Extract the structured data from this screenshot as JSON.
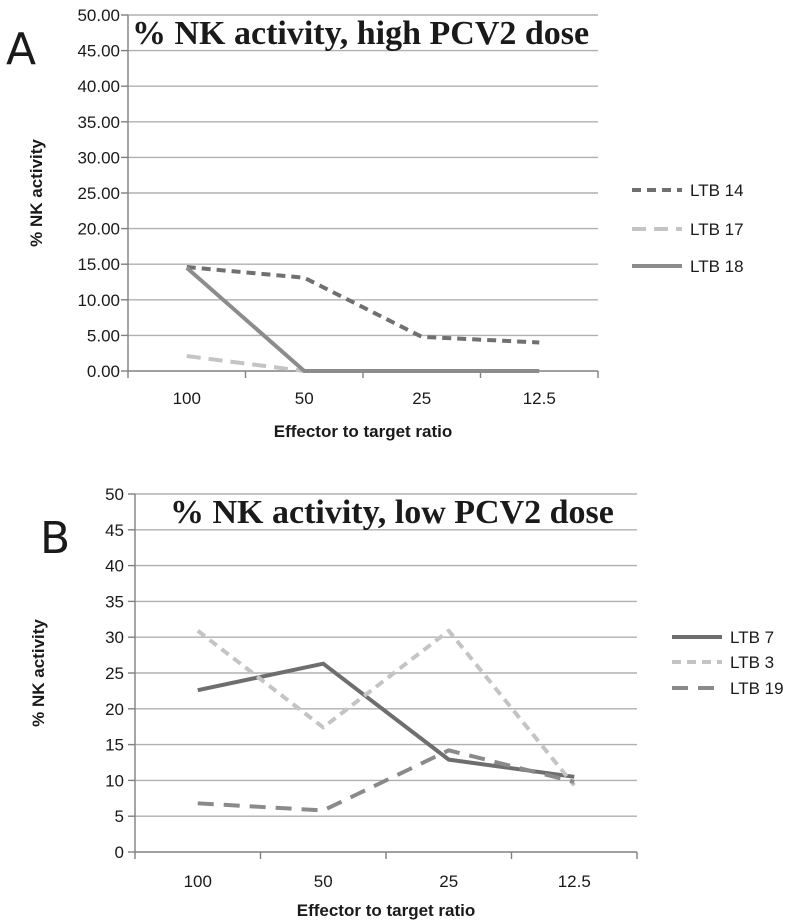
{
  "colors": {
    "background": "#ffffff",
    "grid": "#b0b0b0",
    "axis": "#808080",
    "text": "#1a1a1a"
  },
  "chart_data": [
    {
      "panel_letter": "A",
      "type": "line",
      "title": "% NK activity, high PCV2 dose",
      "xlabel": "Effector to target ratio",
      "ylabel": "% NK activity",
      "categories": [
        "100",
        "50",
        "25",
        "12.5"
      ],
      "ylim": [
        0,
        50
      ],
      "yticks": [
        0,
        5,
        10,
        15,
        20,
        25,
        30,
        35,
        40,
        45,
        50
      ],
      "ytick_labels": [
        "0.00",
        "5.00",
        "10.00",
        "15.00",
        "20.00",
        "25.00",
        "30.00",
        "35.00",
        "40.00",
        "45.00",
        "50.00"
      ],
      "grid": true,
      "legend_position": "right",
      "series": [
        {
          "name": "LTB 14",
          "values": [
            14.6,
            13.1,
            4.8,
            4.0
          ],
          "color": "#707070",
          "dash": "9 6",
          "width": 4
        },
        {
          "name": "LTB 17",
          "values": [
            2.1,
            0.0,
            0.0,
            0.0
          ],
          "color": "#c4c4c4",
          "dash": "14 8",
          "width": 4
        },
        {
          "name": "LTB 18",
          "values": [
            14.5,
            0.0,
            0.0,
            0.0
          ],
          "color": "#8c8c8c",
          "dash": "",
          "width": 4
        }
      ]
    },
    {
      "panel_letter": "B",
      "type": "line",
      "title": "% NK activity, low PCV2 dose",
      "xlabel": "Effector to target ratio",
      "ylabel": "% NK activity",
      "categories": [
        "100",
        "50",
        "25",
        "12.5"
      ],
      "ylim": [
        0,
        50
      ],
      "yticks": [
        0,
        5,
        10,
        15,
        20,
        25,
        30,
        35,
        40,
        45,
        50
      ],
      "ytick_labels": [
        "0",
        "5",
        "10",
        "15",
        "20",
        "25",
        "30",
        "35",
        "40",
        "45",
        "50"
      ],
      "grid": true,
      "legend_position": "right",
      "series": [
        {
          "name": "LTB 7",
          "values": [
            22.6,
            26.3,
            12.9,
            10.5
          ],
          "color": "#6e6e6e",
          "dash": "",
          "width": 4
        },
        {
          "name": "LTB 3",
          "values": [
            30.9,
            17.4,
            30.9,
            9.3
          ],
          "color": "#c4c4c4",
          "dash": "9 6",
          "width": 4
        },
        {
          "name": "LTB 19",
          "values": [
            6.8,
            5.8,
            14.2,
            9.8
          ],
          "color": "#8a8a8a",
          "dash": "16 10",
          "width": 4
        }
      ]
    }
  ]
}
